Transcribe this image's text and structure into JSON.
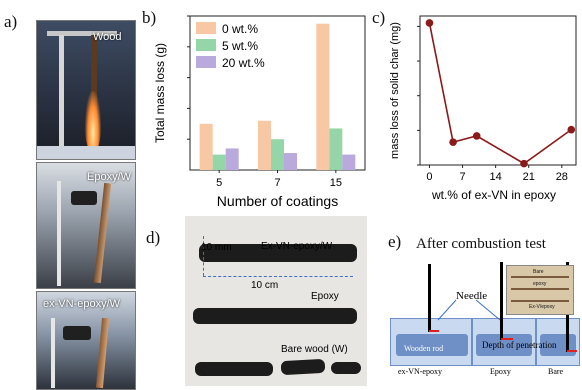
{
  "panel_letters": {
    "a": "a)",
    "b": "b)",
    "c": "c)",
    "d": "d)",
    "e": "e)"
  },
  "panel_a": {
    "labels": [
      "Wood",
      "Epoxy/W",
      "ex-VN-epoxy/W"
    ]
  },
  "chart_data": [
    {
      "type": "bar",
      "categories": [
        "5",
        "7",
        "15"
      ],
      "series": [
        {
          "name": "0 wt.%",
          "color": "#f8c8a4",
          "values": [
            0.3,
            0.32,
            0.95
          ]
        },
        {
          "name": "5 wt.%",
          "color": "#95d6a8",
          "values": [
            0.1,
            0.2,
            0.27
          ]
        },
        {
          "name": "20 wt.%",
          "color": "#b9a9dc",
          "values": [
            0.14,
            0.11,
            0.1
          ]
        }
      ],
      "xlabel": "Number of coatings",
      "ylabel": "Total mass loss (g)",
      "ylim": [
        0,
        1.0
      ],
      "legend": "top-left"
    },
    {
      "type": "line",
      "x": [
        0,
        5,
        10,
        20,
        30
      ],
      "x_ticks": [
        "0",
        "7",
        "14",
        "21",
        "28"
      ],
      "x_tick_values": [
        0,
        7,
        14,
        21,
        28
      ],
      "y": [
        205,
        33,
        42,
        2,
        51
      ],
      "xlabel": "wt.% of ex-VN in epoxy",
      "ylabel": "mass loss of solid char (mg)",
      "y_ticks": [
        0,
        50,
        100,
        150,
        200
      ],
      "ylim": [
        0,
        215
      ],
      "xlim": [
        -2,
        31
      ],
      "color": "#8b1a1a"
    }
  ],
  "panel_d": {
    "dim_h": "10 mm",
    "dim_w": "10 cm",
    "label_1": "Ex-VN-epoxy/W",
    "label_2": "Epoxy",
    "label_3": "Bare wood (W)"
  },
  "panel_e": {
    "title": "After combustion test",
    "needle": "Needle",
    "rod": "Wooden rod",
    "depth": "Depth of penetration",
    "bottom_labels": [
      "ex-VN-epoxy",
      "Epoxy",
      "Bare"
    ],
    "inset_labels": [
      "Bare",
      "epoxy",
      "Ex-V/epoxy"
    ]
  }
}
